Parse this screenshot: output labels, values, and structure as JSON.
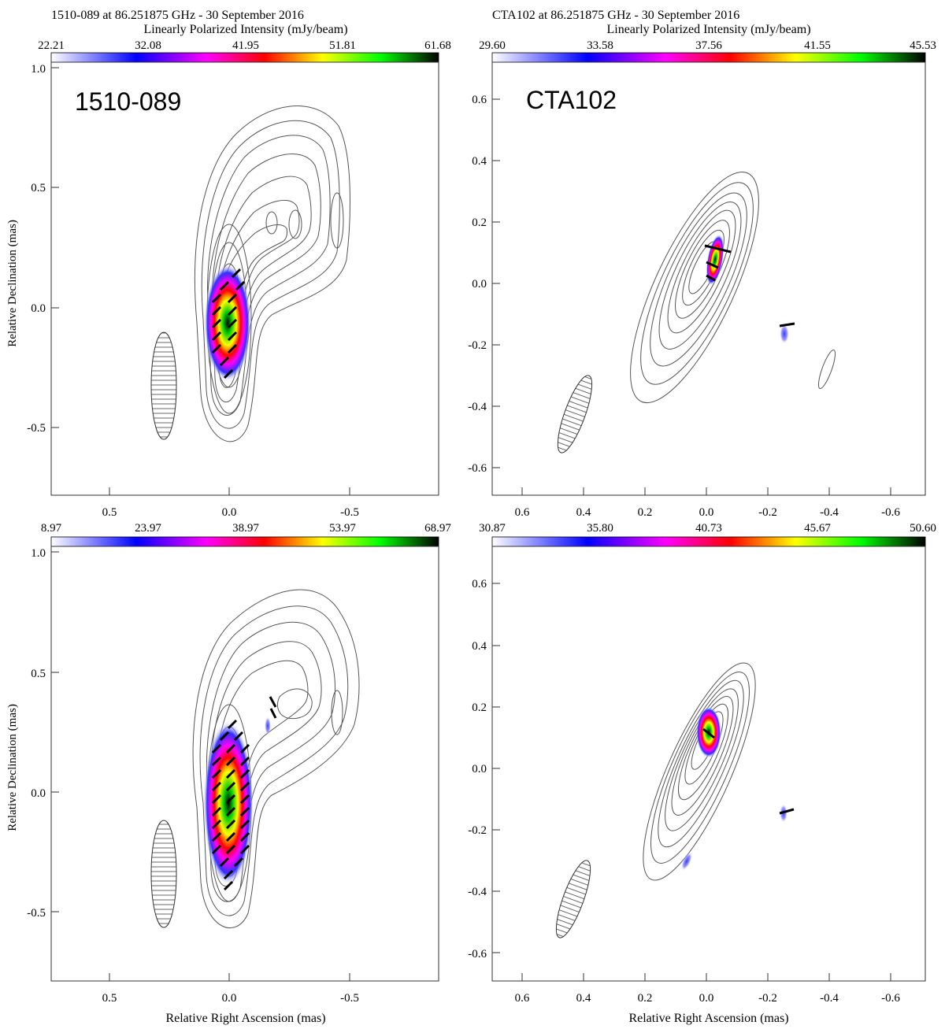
{
  "panels": [
    {
      "id": "tl",
      "header": "1510-089 at 86.251875 GHz - 30 September 2016",
      "colorbar_label": "Linearly Polarized Intensity (mJy/beam)",
      "colorbar_ticks": [
        "22.21",
        "32.08",
        "41.95",
        "51.81",
        "61.68"
      ],
      "source_label": "1510-089",
      "y_ticks": [
        "1.0",
        "0.5",
        "0.0",
        "-0.5"
      ],
      "x_ticks": [
        "0.5",
        "0.0",
        "-0.5"
      ],
      "y_axis_label": "Relative Declination (mas)",
      "x_axis_label": ""
    },
    {
      "id": "tr",
      "header": "CTA102 at 86.251875 GHz - 30 September 2016",
      "colorbar_label": "Linearly Polarized Intensity (mJy/beam)",
      "colorbar_ticks": [
        "29.60",
        "33.58",
        "37.56",
        "41.55",
        "45.53"
      ],
      "source_label": "CTA102",
      "y_ticks": [
        "0.6",
        "0.4",
        "0.2",
        "0.0",
        "-0.2",
        "-0.4",
        "-0.6"
      ],
      "x_ticks": [
        "0.6",
        "0.4",
        "0.2",
        "0.0",
        "-0.2",
        "-0.4",
        "-0.6"
      ],
      "y_axis_label": "",
      "x_axis_label": ""
    },
    {
      "id": "bl",
      "header": "",
      "colorbar_label": "",
      "colorbar_ticks": [
        "8.97",
        "23.97",
        "38.97",
        "53.97",
        "68.97"
      ],
      "source_label": "",
      "y_ticks": [
        "1.0",
        "0.5",
        "0.0",
        "-0.5"
      ],
      "x_ticks": [
        "0.5",
        "0.0",
        "-0.5"
      ],
      "y_axis_label": "Relative Declination (mas)",
      "x_axis_label": "Relative Right Ascension (mas)"
    },
    {
      "id": "br",
      "header": "",
      "colorbar_label": "",
      "colorbar_ticks": [
        "30.87",
        "35.80",
        "40.73",
        "45.67",
        "50.60"
      ],
      "source_label": "",
      "y_ticks": [
        "0.6",
        "0.4",
        "0.2",
        "0.0",
        "-0.2",
        "-0.4",
        "-0.6"
      ],
      "x_ticks": [
        "0.6",
        "0.4",
        "0.2",
        "0.0",
        "-0.2",
        "-0.4",
        "-0.6"
      ],
      "y_axis_label": "",
      "x_axis_label": "Relative Right Ascension (mas)"
    }
  ],
  "colors": {
    "colormap": [
      "#ffffff",
      "#0000ff",
      "#ff00ff",
      "#ff0000",
      "#ffff00",
      "#00ff00",
      "#000000"
    ],
    "contour": "#555555",
    "evpa": "#000000"
  }
}
